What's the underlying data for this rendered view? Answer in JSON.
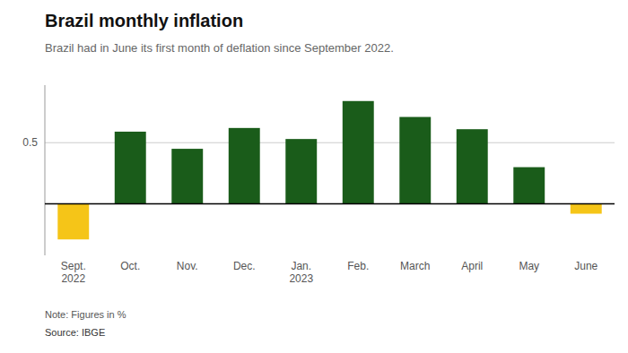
{
  "chart_data": {
    "type": "bar",
    "title": "Brazil monthly inflation",
    "subtitle": "Brazil had in June its first month of deflation since September 2022.",
    "annotations": [
      "Note: Figures in %",
      "Source: IBGE"
    ],
    "categories": [
      "Sept.\n2022",
      "Oct.",
      "Nov.",
      "Dec.",
      "Jan.\n2023",
      "Feb.",
      "March",
      "April",
      "May",
      "June"
    ],
    "values": [
      -0.29,
      0.59,
      0.45,
      0.62,
      0.53,
      0.84,
      0.71,
      0.61,
      0.3,
      -0.08
    ],
    "colors": [
      "#F5C518",
      "#1a5c1a",
      "#1a5c1a",
      "#1a5c1a",
      "#1a5c1a",
      "#1a5c1a",
      "#1a5c1a",
      "#1a5c1a",
      "#1a5c1a",
      "#F5C518"
    ],
    "ylim": [
      -0.42,
      0.97
    ],
    "yticks": [
      0.5
    ],
    "grid": true
  }
}
